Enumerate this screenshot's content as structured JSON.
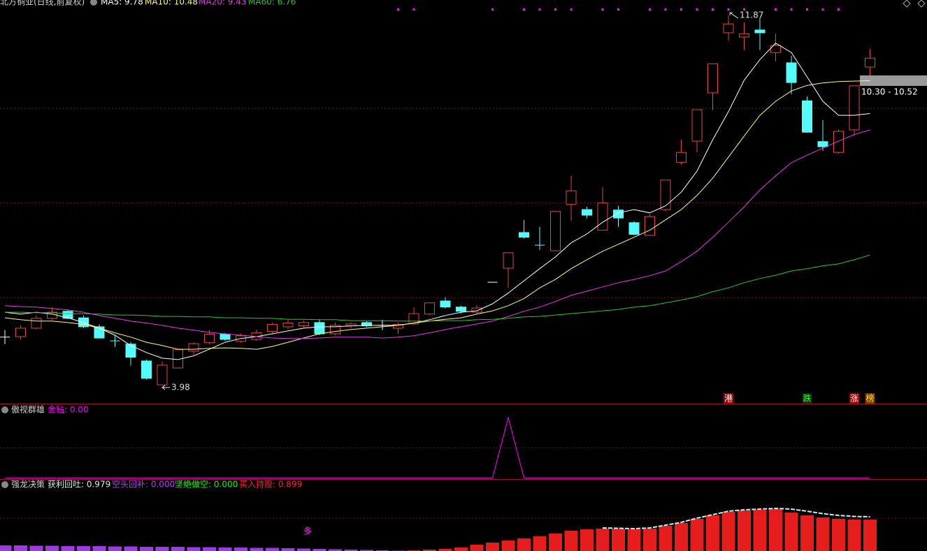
{
  "chart_data": [
    {
      "type": "candlestick",
      "title": "北方铜业(日线,前复权)",
      "categories": [
        null,
        null,
        null,
        null,
        null,
        null,
        null,
        null,
        null,
        null,
        null,
        null,
        null,
        null,
        null,
        null,
        null,
        null,
        null,
        null,
        null,
        null,
        null,
        null,
        null,
        null,
        null,
        null,
        null,
        null,
        null,
        null,
        null,
        null,
        null,
        null,
        null,
        null,
        null,
        null,
        null,
        null,
        null,
        null,
        null,
        null,
        null,
        null,
        null,
        null,
        null,
        null,
        null,
        null,
        null,
        null
      ],
      "open": [
        5.01,
        5.02,
        5.2,
        5.41,
        5.56,
        5.42,
        5.23,
        4.93,
        4.86,
        4.5,
        3.99,
        4.35,
        4.71,
        4.89,
        5.07,
        4.92,
        4.96,
        5.13,
        5.23,
        5.25,
        5.32,
        5.08,
        5.25,
        5.32,
        5.26,
        5.2,
        5.29,
        5.5,
        5.78,
        5.65,
        5.54,
        6.18,
        6.48,
        7.24,
        6.97,
        6.85,
        7.84,
        7.73,
        7.29,
        7.72,
        7.45,
        7.18,
        7.73,
        8.74,
        9.19,
        10.22,
        11.5,
        11.41,
        11.56,
        11.08,
        10.86,
        10.05,
        9.18,
        8.95,
        9.43,
        10.77
      ],
      "high": [
        5.16,
        5.26,
        5.47,
        5.65,
        5.6,
        5.47,
        5.28,
        5.05,
        4.9,
        4.53,
        4.49,
        4.75,
        4.9,
        5.16,
        5.1,
        5.08,
        5.17,
        5.32,
        5.38,
        5.36,
        5.38,
        5.32,
        5.32,
        5.35,
        5.38,
        5.32,
        5.65,
        5.75,
        5.86,
        5.68,
        5.69,
        6.18,
        6.81,
        7.51,
        7.36,
        7.69,
        8.45,
        7.79,
        8.21,
        7.81,
        7.48,
        7.63,
        8.36,
        9.22,
        9.86,
        10.84,
        11.87,
        11.72,
        11.82,
        11.48,
        11.01,
        10.14,
        9.64,
        9.44,
        10.38,
        11.16
      ],
      "low": [
        4.86,
        4.95,
        5.17,
        5.38,
        5.39,
        5.2,
        4.98,
        4.8,
        4.4,
        4.1,
        3.98,
        4.34,
        4.64,
        4.86,
        4.93,
        4.89,
        4.93,
        5.1,
        5.17,
        5.22,
        5.05,
        5.05,
        5.2,
        5.22,
        5.16,
        5.08,
        5.26,
        5.48,
        5.62,
        5.51,
        5.51,
        6.18,
        6.06,
        7.11,
        6.87,
        6.85,
        7.49,
        7.54,
        7.29,
        7.36,
        7.18,
        7.18,
        7.69,
        8.7,
        8.95,
        9.85,
        11.33,
        11.13,
        11.13,
        10.89,
        10.19,
        9.37,
        8.98,
        8.92,
        9.31,
        10.59
      ],
      "close": [
        5.01,
        5.2,
        5.41,
        5.54,
        5.41,
        5.23,
        4.99,
        4.93,
        4.58,
        4.13,
        4.41,
        4.74,
        4.87,
        5.07,
        4.96,
        5.04,
        5.1,
        5.28,
        5.31,
        5.32,
        5.08,
        5.26,
        5.29,
        5.25,
        5.26,
        5.28,
        5.51,
        5.74,
        5.65,
        5.56,
        5.63,
        6.18,
        6.81,
        7.14,
        6.97,
        7.69,
        8.13,
        7.61,
        7.87,
        7.55,
        7.2,
        7.58,
        8.36,
        8.95,
        9.86,
        10.84,
        11.69,
        11.48,
        11.5,
        11.23,
        10.44,
        9.38,
        9.07,
        9.4,
        10.37,
        10.96
      ],
      "up_color": "#e8453c",
      "down_color": "#54fcfc",
      "doji_color": "#ffffff",
      "ylim": [
        3.59,
        12.2
      ],
      "grid_lines": [
        5.85,
        7.87,
        9.89
      ],
      "series": [
        {
          "name": "MA5: 9.78",
          "color": "#ffffff",
          "values": [
            5.54,
            5.5,
            5.54,
            5.5,
            5.42,
            5.32,
            5.2,
            5.05,
            4.83,
            4.68,
            4.56,
            4.53,
            4.61,
            4.75,
            4.9,
            4.98,
            5.02,
            5.08,
            5.14,
            5.2,
            5.23,
            5.23,
            5.25,
            5.26,
            5.26,
            5.26,
            5.31,
            5.38,
            5.47,
            5.54,
            5.57,
            5.72,
            5.95,
            6.21,
            6.47,
            6.72,
            7.02,
            7.21,
            7.46,
            7.66,
            7.73,
            7.66,
            7.81,
            8.1,
            8.55,
            9.22,
            9.82,
            10.49,
            10.93,
            11.28,
            11.08,
            10.56,
            10.04,
            9.74,
            9.74,
            9.78
          ]
        },
        {
          "name": "MA10: 10.48",
          "color": "#ffff66",
          "values": [
            5.42,
            5.38,
            5.35,
            5.35,
            5.32,
            5.28,
            5.2,
            5.1,
            5.01,
            4.9,
            4.83,
            4.75,
            4.75,
            4.77,
            4.78,
            4.77,
            4.75,
            4.81,
            4.9,
            4.99,
            5.08,
            5.13,
            5.17,
            5.2,
            5.23,
            5.26,
            5.31,
            5.35,
            5.39,
            5.42,
            5.5,
            5.57,
            5.68,
            5.83,
            6.06,
            6.24,
            6.47,
            6.66,
            6.84,
            6.99,
            7.14,
            7.29,
            7.51,
            7.73,
            8.03,
            8.4,
            8.85,
            9.3,
            9.74,
            10.04,
            10.26,
            10.38,
            10.43,
            10.46,
            10.47,
            10.48
          ]
        },
        {
          "name": "MA20: 9.43",
          "color": "#e838e8",
          "values": [
            5.68,
            5.66,
            5.65,
            5.62,
            5.59,
            5.54,
            5.47,
            5.41,
            5.35,
            5.31,
            5.26,
            5.2,
            5.16,
            5.11,
            5.08,
            5.05,
            5.02,
            4.99,
            4.98,
            4.98,
            4.99,
            5.01,
            5.01,
            5.01,
            4.99,
            5.01,
            5.04,
            5.1,
            5.17,
            5.23,
            5.29,
            5.35,
            5.45,
            5.56,
            5.65,
            5.77,
            5.9,
            5.99,
            6.08,
            6.17,
            6.24,
            6.32,
            6.42,
            6.62,
            6.84,
            7.14,
            7.46,
            7.79,
            8.15,
            8.45,
            8.73,
            8.89,
            9.04,
            9.19,
            9.33,
            9.43
          ]
        },
        {
          "name": "MA60: 6.76",
          "color": "#22cc22",
          "values": [
            5.54,
            5.54,
            5.53,
            5.53,
            5.51,
            5.51,
            5.5,
            5.48,
            5.48,
            5.47,
            5.45,
            5.45,
            5.44,
            5.44,
            5.42,
            5.42,
            5.41,
            5.41,
            5.39,
            5.39,
            5.38,
            5.38,
            5.36,
            5.36,
            5.36,
            5.35,
            5.35,
            5.35,
            5.36,
            5.36,
            5.38,
            5.39,
            5.41,
            5.44,
            5.45,
            5.48,
            5.51,
            5.54,
            5.57,
            5.6,
            5.65,
            5.68,
            5.74,
            5.8,
            5.87,
            5.98,
            6.06,
            6.17,
            6.26,
            6.33,
            6.42,
            6.47,
            6.53,
            6.57,
            6.66,
            6.76
          ]
        }
      ],
      "annotations": [
        "10.30 - 10.52"
      ],
      "signals": [
        "港",
        "跌",
        "涨",
        "榜"
      ]
    },
    {
      "type": "line",
      "title": "傲视群雄",
      "ylim": [
        -0.02,
        1.23
      ],
      "grid_lines": [
        0.5
      ],
      "series": [
        {
          "name": "金钻: 0.00",
          "color": "#ff00ff",
          "values": [
            0,
            0,
            0,
            0,
            0,
            0,
            0,
            0,
            0,
            0,
            0,
            0,
            0,
            0,
            0,
            0,
            0,
            0,
            0,
            0,
            0,
            0,
            0,
            0,
            0,
            0,
            0,
            0,
            0,
            0,
            0,
            0,
            1,
            0,
            0,
            0,
            0,
            0,
            0,
            0,
            0,
            0,
            0,
            0,
            0,
            0,
            0,
            0,
            0,
            0,
            0,
            0,
            0,
            0,
            0,
            0
          ]
        }
      ]
    },
    {
      "type": "bar",
      "title": "强龙决策",
      "ylim": [
        0,
        2.06
      ],
      "grid_lines": [
        0.94
      ],
      "series": [
        {
          "name": "获利回吐: 0.979",
          "color": "#c8f0f0",
          "style": "line",
          "values": [
            null,
            null,
            null,
            null,
            null,
            null,
            null,
            null,
            null,
            null,
            null,
            null,
            null,
            null,
            null,
            null,
            null,
            null,
            null,
            null,
            null,
            null,
            null,
            null,
            null,
            null,
            null,
            null,
            null,
            null,
            null,
            null,
            null,
            null,
            null,
            null,
            null,
            null,
            0.66,
            0.65,
            0.64,
            0.66,
            0.74,
            0.82,
            0.94,
            1.04,
            1.14,
            1.18,
            1.2,
            1.22,
            1.2,
            1.14,
            1.07,
            1.02,
            0.99,
            0.979
          ]
        },
        {
          "name": "空头回补: 0.000",
          "color": "#b040ff",
          "style": "bar",
          "values": [
            0.16,
            0.16,
            0.15,
            0.15,
            0.14,
            0.14,
            0.14,
            0.13,
            0.13,
            0.12,
            0.12,
            0.12,
            0.11,
            0.11,
            0.1,
            0.1,
            0.09,
            0.09,
            0.08,
            0.07,
            0.06,
            0.05,
            0.04,
            0.03,
            0.02,
            0.01,
            0,
            0,
            0,
            0,
            0,
            0,
            0,
            0,
            0,
            0,
            0,
            0,
            0,
            0,
            0,
            0,
            0,
            0,
            0,
            0,
            0,
            0,
            0,
            0,
            0,
            0,
            0,
            0,
            0,
            0
          ]
        },
        {
          "name": "坚绝做空: 0.000",
          "color": "#00ff00",
          "style": "bar",
          "values": [
            0,
            0,
            0,
            0,
            0,
            0,
            0,
            0,
            0,
            0,
            0,
            0,
            0,
            0,
            0,
            0,
            0,
            0,
            0,
            0,
            0,
            0,
            0,
            0,
            0,
            0,
            0,
            0,
            0,
            0,
            0,
            0,
            0,
            0,
            0,
            0,
            0,
            0,
            0,
            0,
            0,
            0,
            0,
            0,
            0,
            0,
            0,
            0,
            0,
            0,
            0,
            0,
            0,
            0,
            0,
            0
          ]
        },
        {
          "name": "买入持股: 0.899",
          "color": "#ff2020",
          "style": "bar",
          "values": [
            0,
            0,
            0,
            0,
            0,
            0,
            0,
            0,
            0,
            0,
            0,
            0,
            0,
            0,
            0,
            0,
            0,
            0,
            0,
            0,
            0,
            0,
            0,
            0,
            0,
            0,
            0.02,
            0.04,
            0.06,
            0.1,
            0.18,
            0.24,
            0.3,
            0.36,
            0.42,
            0.5,
            0.58,
            0.62,
            0.64,
            0.64,
            0.62,
            0.64,
            0.72,
            0.8,
            0.92,
            1.02,
            1.12,
            1.16,
            1.18,
            1.2,
            1.1,
            1.02,
            0.96,
            0.92,
            0.9,
            0.899
          ]
        }
      ],
      "annotations": [
        "多"
      ]
    }
  ]
}
